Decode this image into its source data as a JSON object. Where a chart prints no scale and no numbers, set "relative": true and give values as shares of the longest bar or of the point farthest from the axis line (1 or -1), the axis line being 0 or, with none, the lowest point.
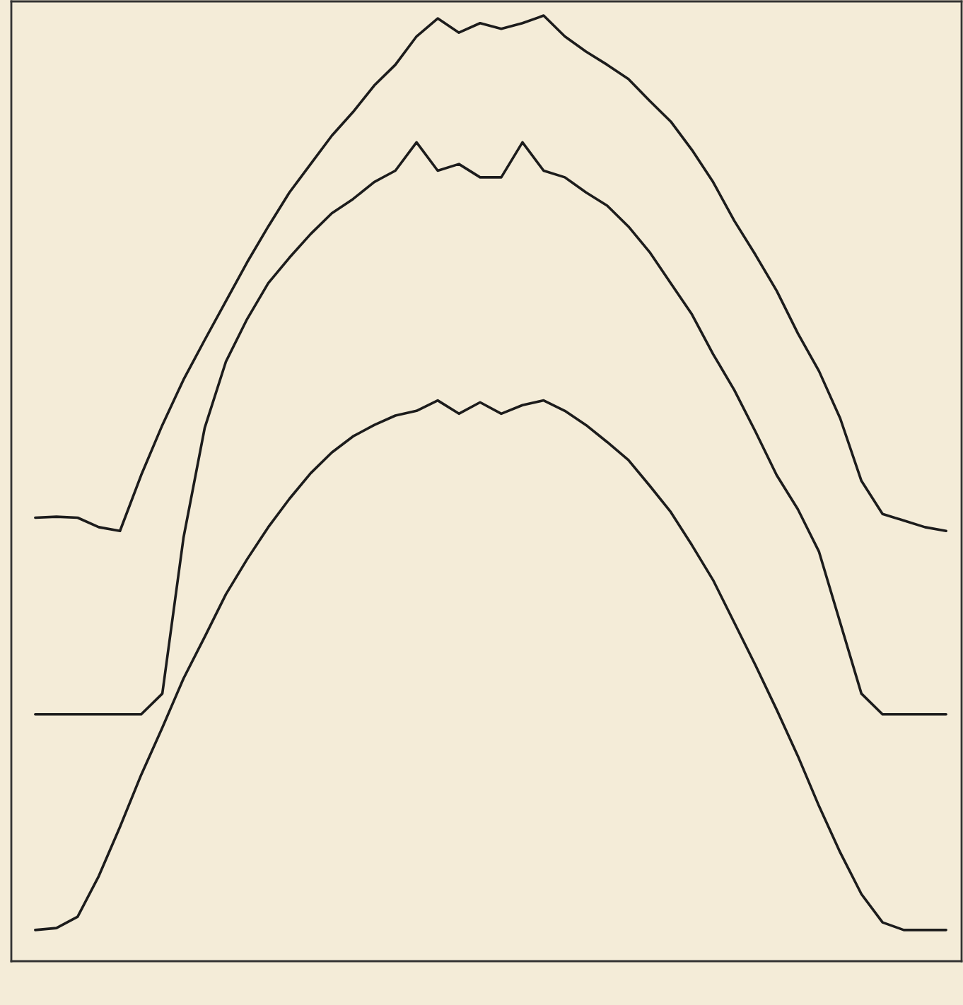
{
  "chart_data": {
    "type": "line",
    "relative": true,
    "categories": [
      null,
      null,
      null,
      null,
      null,
      null,
      null,
      null,
      null,
      null,
      null,
      null,
      null,
      null,
      null,
      null,
      null,
      null,
      null,
      null,
      null,
      null,
      null,
      null,
      null,
      null,
      null,
      null,
      null,
      null,
      null,
      null,
      null,
      null,
      null,
      null,
      null,
      null,
      null,
      null,
      null,
      null,
      null,
      null
    ],
    "series": [
      {
        "color": "#1c1c1c",
        "values": [
          0.469,
          0.47,
          0.469,
          0.459,
          0.455,
          0.514,
          0.567,
          0.615,
          0.657,
          0.698,
          0.739,
          0.777,
          0.813,
          0.843,
          0.873,
          0.898,
          0.926,
          0.948,
          0.978,
          0.997,
          0.982,
          0.992,
          0.986,
          0.992,
          1.0,
          0.978,
          0.962,
          0.948,
          0.933,
          0.91,
          0.888,
          0.858,
          0.824,
          0.783,
          0.747,
          0.709,
          0.664,
          0.624,
          0.574,
          0.508,
          0.473,
          0.466,
          0.459,
          0.455
        ]
      },
      {
        "color": "#1c1c1c",
        "values": [
          0.261,
          0.261,
          0.261,
          0.261,
          0.261,
          0.261,
          0.283,
          0.448,
          0.564,
          0.634,
          0.679,
          0.717,
          0.744,
          0.769,
          0.791,
          0.806,
          0.824,
          0.836,
          0.866,
          0.836,
          0.843,
          0.829,
          0.829,
          0.866,
          0.836,
          0.829,
          0.813,
          0.799,
          0.777,
          0.75,
          0.717,
          0.684,
          0.642,
          0.604,
          0.56,
          0.514,
          0.478,
          0.433,
          0.358,
          0.283,
          0.261,
          0.261,
          0.261,
          0.261
        ]
      },
      {
        "color": "#1c1c1c",
        "values": [
          0.033,
          0.035,
          0.047,
          0.09,
          0.142,
          0.197,
          0.247,
          0.299,
          0.343,
          0.388,
          0.425,
          0.459,
          0.489,
          0.516,
          0.538,
          0.555,
          0.567,
          0.577,
          0.582,
          0.593,
          0.579,
          0.591,
          0.579,
          0.588,
          0.593,
          0.582,
          0.567,
          0.549,
          0.53,
          0.503,
          0.475,
          0.44,
          0.403,
          0.358,
          0.313,
          0.266,
          0.217,
          0.164,
          0.115,
          0.071,
          0.041,
          0.033,
          0.033,
          0.033
        ]
      }
    ]
  }
}
